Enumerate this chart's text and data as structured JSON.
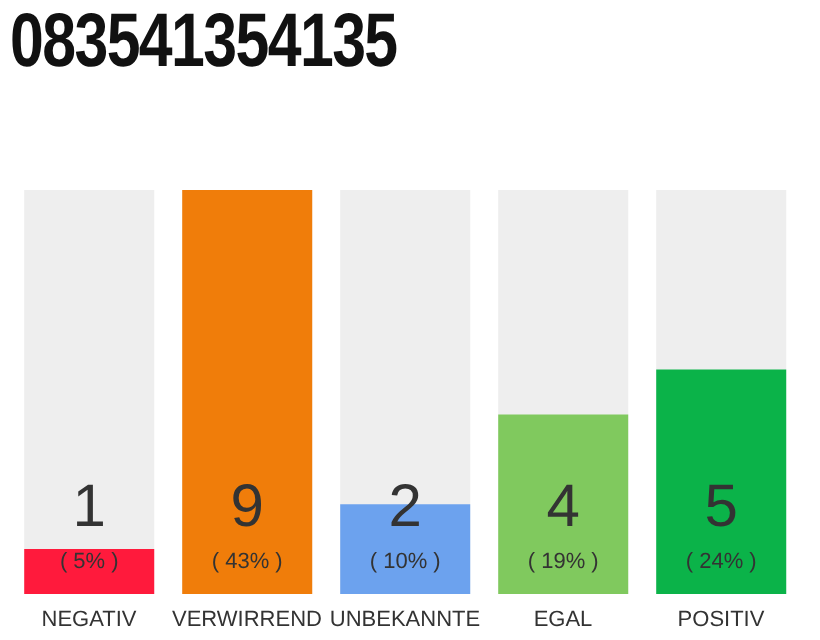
{
  "chart_data": {
    "type": "bar",
    "title": "083541354135",
    "categories": [
      "NEGATIV",
      "VERWIRREND",
      "UNBEKANNTE",
      "EGAL",
      "POSITIV"
    ],
    "values": [
      1,
      9,
      2,
      4,
      5
    ],
    "colors": [
      "#ff1a3c",
      "#f07d0a",
      "#6ca2ee",
      "#80c95e",
      "#0bb349"
    ],
    "data_labels": true,
    "annotations": [
      "( 5% )",
      "( 43% )",
      "( 10% )",
      "( 19% )",
      "( 24% )"
    ],
    "grid": false,
    "legend": false
  }
}
